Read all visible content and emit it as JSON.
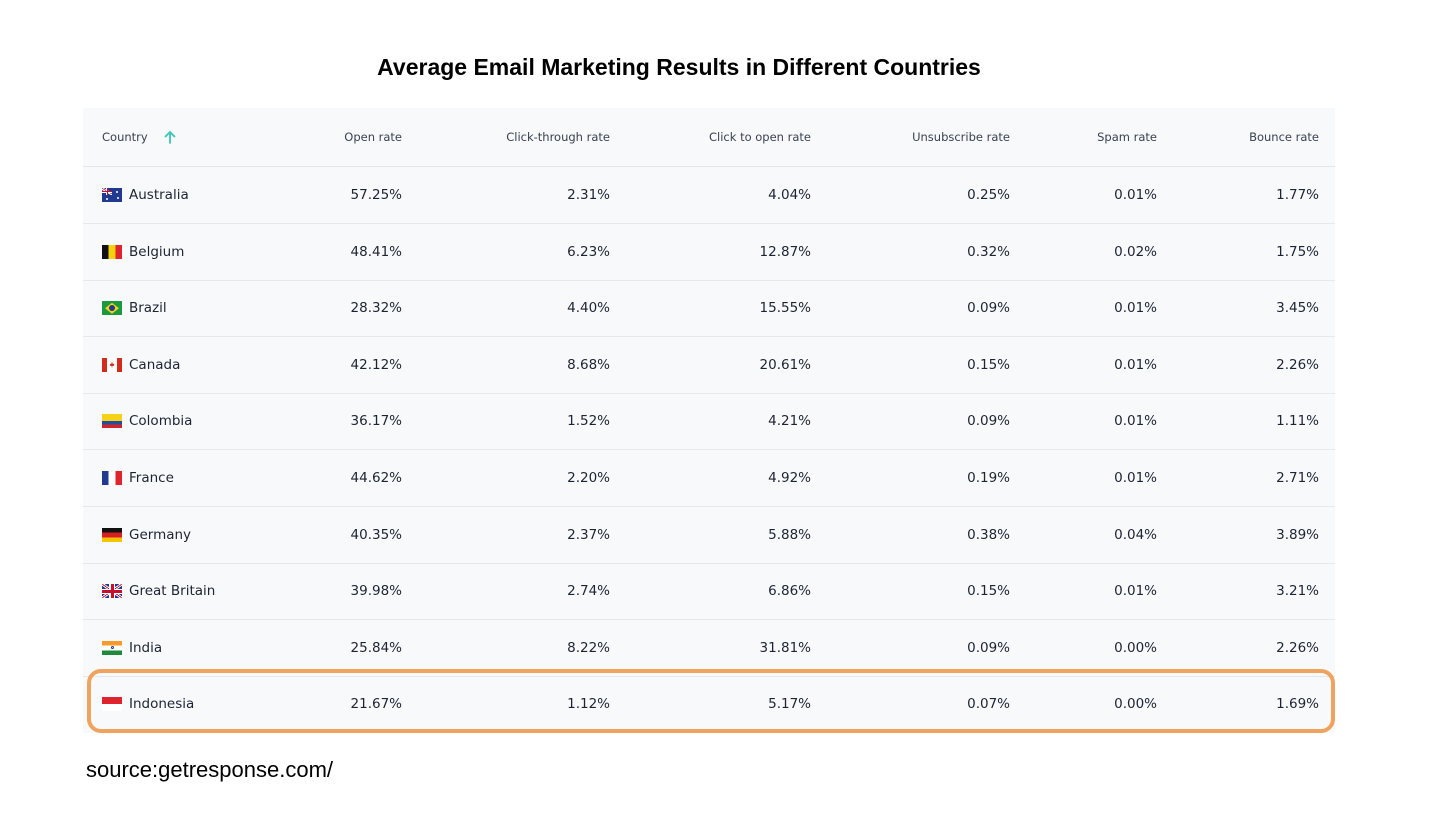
{
  "title": "Average Email Marketing Results in Different Countries",
  "table": {
    "columns": [
      "Country",
      "Open rate",
      "Click-through rate",
      "Click to open rate",
      "Unsubscribe rate",
      "Spam rate",
      "Bounce rate"
    ],
    "sort_icon": "arrow-up-icon",
    "rows": [
      {
        "country": "Australia",
        "flag": "australia-flag-icon",
        "open": "57.25%",
        "ctr": "2.31%",
        "ctor": "4.04%",
        "unsub": "0.25%",
        "spam": "0.01%",
        "bounce": "1.77%"
      },
      {
        "country": "Belgium",
        "flag": "belgium-flag-icon",
        "open": "48.41%",
        "ctr": "6.23%",
        "ctor": "12.87%",
        "unsub": "0.32%",
        "spam": "0.02%",
        "bounce": "1.75%"
      },
      {
        "country": "Brazil",
        "flag": "brazil-flag-icon",
        "open": "28.32%",
        "ctr": "4.40%",
        "ctor": "15.55%",
        "unsub": "0.09%",
        "spam": "0.01%",
        "bounce": "3.45%"
      },
      {
        "country": "Canada",
        "flag": "canada-flag-icon",
        "open": "42.12%",
        "ctr": "8.68%",
        "ctor": "20.61%",
        "unsub": "0.15%",
        "spam": "0.01%",
        "bounce": "2.26%"
      },
      {
        "country": "Colombia",
        "flag": "colombia-flag-icon",
        "open": "36.17%",
        "ctr": "1.52%",
        "ctor": "4.21%",
        "unsub": "0.09%",
        "spam": "0.01%",
        "bounce": "1.11%"
      },
      {
        "country": "France",
        "flag": "france-flag-icon",
        "open": "44.62%",
        "ctr": "2.20%",
        "ctor": "4.92%",
        "unsub": "0.19%",
        "spam": "0.01%",
        "bounce": "2.71%"
      },
      {
        "country": "Germany",
        "flag": "germany-flag-icon",
        "open": "40.35%",
        "ctr": "2.37%",
        "ctor": "5.88%",
        "unsub": "0.38%",
        "spam": "0.04%",
        "bounce": "3.89%"
      },
      {
        "country": "Great Britain",
        "flag": "great-britain-flag-icon",
        "open": "39.98%",
        "ctr": "2.74%",
        "ctor": "6.86%",
        "unsub": "0.15%",
        "spam": "0.01%",
        "bounce": "3.21%"
      },
      {
        "country": "India",
        "flag": "india-flag-icon",
        "open": "25.84%",
        "ctr": "8.22%",
        "ctor": "31.81%",
        "unsub": "0.09%",
        "spam": "0.00%",
        "bounce": "2.26%"
      },
      {
        "country": "Indonesia",
        "flag": "indonesia-flag-icon",
        "open": "21.67%",
        "ctr": "1.12%",
        "ctor": "5.17%",
        "unsub": "0.07%",
        "spam": "0.00%",
        "bounce": "1.69%"
      }
    ]
  },
  "highlighted_country": "Indonesia",
  "colors": {
    "highlight": "#f0a35e",
    "sort_arrow": "#3cc6b4",
    "row_background": "#f8f9fb"
  },
  "source": "source:getresponse.com/"
}
